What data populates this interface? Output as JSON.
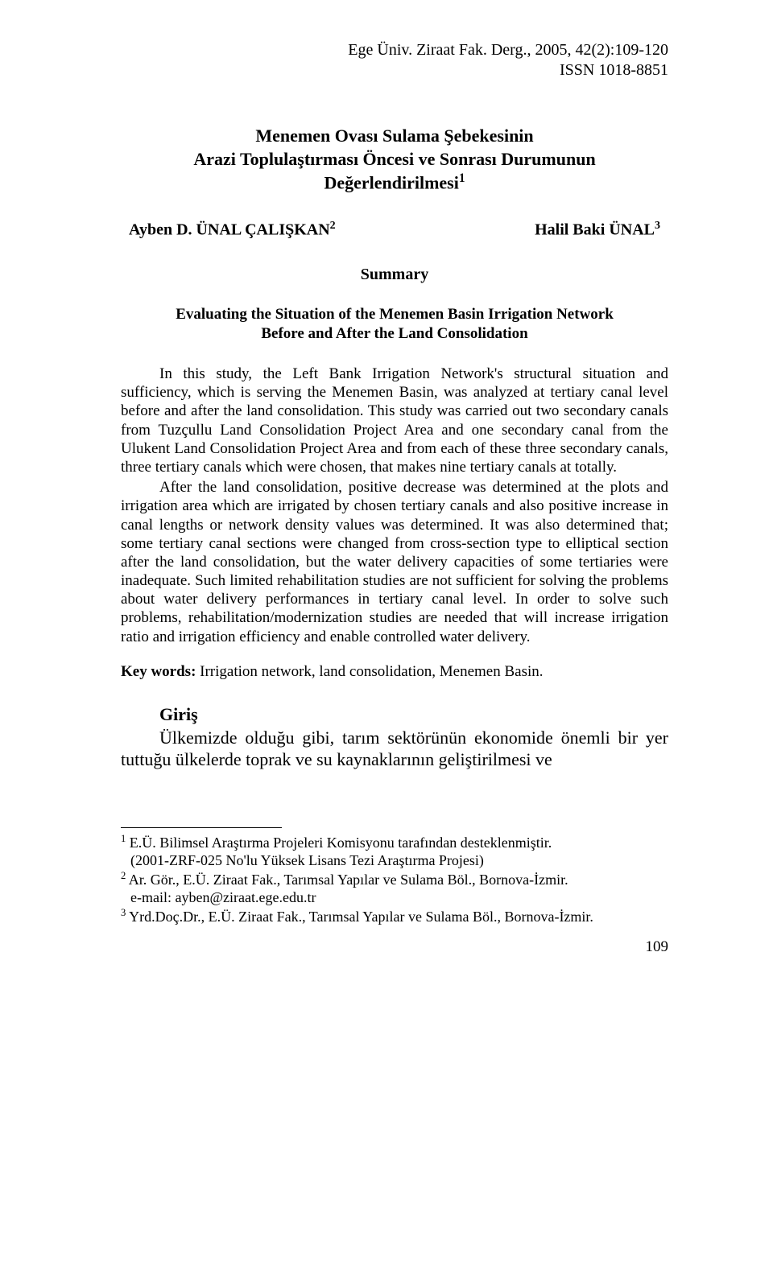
{
  "journal": {
    "line1": "Ege Üniv. Ziraat Fak. Derg., 2005, 42(2):109-120",
    "line2": "ISSN 1018-8851"
  },
  "title": {
    "line1": "Menemen Ovası Sulama Şebekesinin",
    "line2": "Arazi Toplulaştırması Öncesi ve Sonrası Durumunun",
    "line3": "Değerlendirilmesi",
    "sup": "1"
  },
  "authors": {
    "a1_name": "Ayben D. ÜNAL ÇALIŞKAN",
    "a1_sup": "2",
    "a2_name": "Halil Baki ÜNAL",
    "a2_sup": "3"
  },
  "summary_heading": "Summary",
  "subtitle": {
    "line1": "Evaluating the Situation of the Menemen Basin Irrigation Network",
    "line2": "Before and After the Land Consolidation"
  },
  "para1": "In this study, the Left Bank Irrigation Network's structural situation and sufficiency, which is serving the Menemen Basin, was analyzed at tertiary canal level before and after the land consolidation. This study was carried out two secondary canals from Tuzçullu Land Consolidation Project Area and one secondary canal from the Ulukent Land Consolidation Project Area and from each of these three secondary canals, three tertiary canals which were chosen, that makes nine tertiary canals at totally.",
  "para2": "After the land consolidation, positive decrease was determined at the plots and irrigation area which are irrigated by chosen tertiary canals and also positive increase in canal lengths or network density values was determined. It was also determined that; some tertiary canal sections were changed from cross-section type to elliptical section after the land consolidation, but the water delivery capacities of some tertiaries were inadequate. Such limited rehabilitation studies are not sufficient for solving the problems about water delivery performances in tertiary canal level. In order to solve such problems, rehabilitation/modernization studies are needed that will increase irrigation ratio and irrigation efficiency and enable controlled water delivery.",
  "keywords_label": "Key words:",
  "keywords_text": " Irrigation network, land consolidation, Menemen Basin.",
  "giris_heading": "Giriş",
  "giris_para": "Ülkemizde olduğu gibi, tarım sektörünün ekonomide önemli bir yer tuttuğu ülkelerde toprak ve su kaynaklarının geliştirilmesi ve",
  "footnotes": {
    "f1_sup": "1",
    "f1_text": " E.Ü. Bilimsel Araştırma Projeleri Komisyonu tarafından desteklenmiştir.",
    "f1_sub": "(2001-ZRF-025 No'lu Yüksek Lisans Tezi Araştırma Projesi)",
    "f2_sup": "2",
    "f2_text": " Ar. Gör., E.Ü. Ziraat Fak., Tarımsal Yapılar ve Sulama Böl., Bornova-İzmir.",
    "f2_sub": "e-mail: ayben@ziraat.ege.edu.tr",
    "f3_sup": "3",
    "f3_text": " Yrd.Doç.Dr., E.Ü. Ziraat Fak., Tarımsal Yapılar ve Sulama Böl., Bornova-İzmir."
  },
  "page_number": "109"
}
